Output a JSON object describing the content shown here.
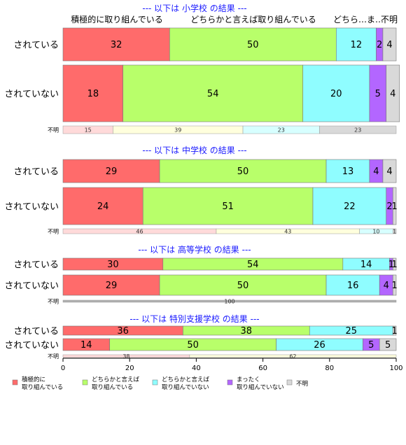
{
  "chart_data": {
    "type": "bar",
    "orientation": "horizontal-stacked-percent",
    "categories": [
      "積極的に取り組んでいる",
      "どちらかと言えば取り組んでいる",
      "どちらかと言えば取り組んでいない",
      "まったく取り組んでいない",
      "不明"
    ],
    "header_labels": [
      "積極的に取り組んでいる",
      "どちらかと言えば取り組んでいる",
      "どちら…ま…",
      "不明"
    ],
    "colors": [
      "#ff6b6b",
      "#b8ff6a",
      "#8ffdff",
      "#b366ff",
      "#d9d9d9"
    ],
    "small_colors": [
      "#ffdada",
      "#ffffdd",
      "#d7ffff",
      "#d9d9d9"
    ],
    "xlim": [
      0,
      100
    ],
    "x_ticks": [
      0,
      20,
      40,
      60,
      80,
      100
    ],
    "legend": {
      "placement": "bottom",
      "entries": [
        [
          "積極的に",
          "取り組んでいる"
        ],
        [
          "どちらかと言えば",
          "取り組んでいる"
        ],
        [
          "どちらかと言えば",
          "取り組んでいない"
        ],
        [
          "まったく",
          "取り組んでいない"
        ],
        [
          "不明"
        ]
      ]
    },
    "sections": [
      {
        "title": "--- 以下は 小学校 の結果 ---",
        "rows": [
          {
            "label": "されている",
            "values": [
              32,
              50,
              12,
              2,
              4
            ]
          },
          {
            "label": "されていない",
            "values": [
              18,
              54,
              20,
              5,
              4
            ]
          }
        ],
        "unknown": {
          "label": "不明",
          "values": [
            15,
            39,
            23,
            23
          ]
        }
      },
      {
        "title": "--- 以下は 中学校 の結果 ---",
        "rows": [
          {
            "label": "されている",
            "values": [
              29,
              50,
              13,
              4,
              4
            ]
          },
          {
            "label": "されていない",
            "values": [
              24,
              51,
              22,
              2,
              1
            ]
          }
        ],
        "unknown": {
          "label": "不明",
          "values": [
            46,
            43,
            10,
            1
          ]
        }
      },
      {
        "title": "--- 以下は 高等学校 の結果 ---",
        "rows": [
          {
            "label": "されている",
            "values": [
              30,
              54,
              14,
              1,
              1
            ]
          },
          {
            "label": "されていない",
            "values": [
              29,
              50,
              16,
              4,
              1
            ]
          }
        ],
        "unknown": {
          "label": "不明",
          "values": [
            100
          ]
        }
      },
      {
        "title": "--- 以下は 特別支援学校 の結果 ---",
        "rows": [
          {
            "label": "されている",
            "values": [
              36,
              38,
              25,
              0,
              1
            ]
          },
          {
            "label": "されていない",
            "values": [
              14,
              50,
              26,
              5,
              5
            ]
          }
        ],
        "unknown": {
          "label": "不明",
          "values": [
            38,
            62
          ]
        }
      }
    ]
  }
}
